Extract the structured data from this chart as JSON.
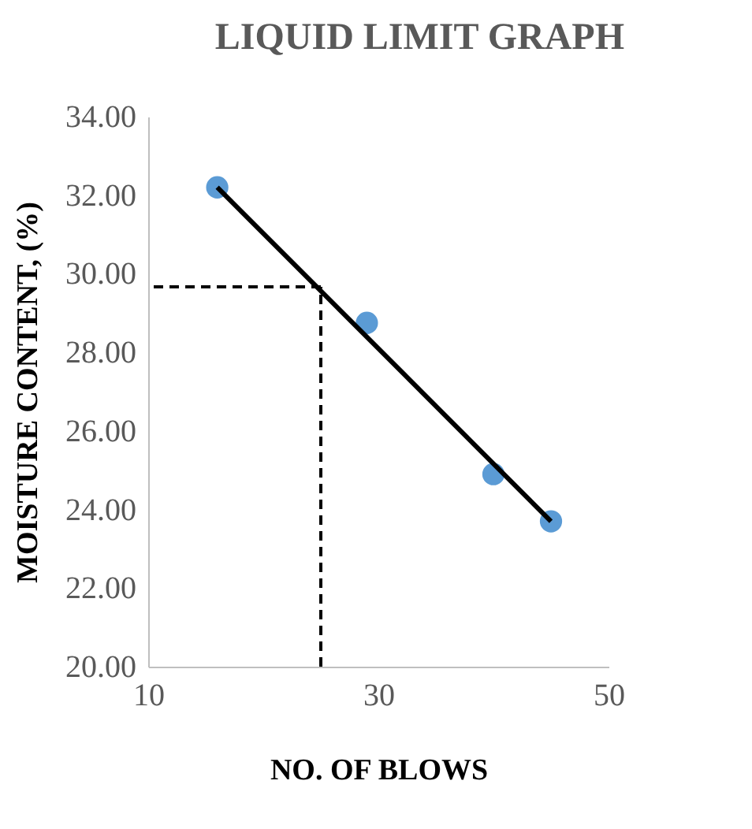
{
  "chart_data": {
    "type": "scatter",
    "title": "LIQUID LIMIT GRAPH",
    "xlabel": "NO. OF BLOWS",
    "ylabel": "MOISTURE CONTENT, (%)",
    "xlim": [
      10,
      50
    ],
    "xticks": [
      10,
      30,
      50
    ],
    "ylim": [
      20,
      34
    ],
    "yticks": [
      {
        "value": 20,
        "label": "20.00"
      },
      {
        "value": 22,
        "label": "22.00"
      },
      {
        "value": 24,
        "label": "24.00"
      },
      {
        "value": 26,
        "label": "26.00"
      },
      {
        "value": 28,
        "label": "28.00"
      },
      {
        "value": 30,
        "label": "30.00"
      },
      {
        "value": 32,
        "label": "32.00"
      },
      {
        "value": 34,
        "label": "34.00"
      }
    ],
    "grid": false,
    "marker": "circle",
    "series": [
      {
        "color": "#5b9bd5",
        "x": [
          16,
          29,
          40,
          45
        ],
        "values": [
          32.2,
          28.75,
          24.9,
          23.7
        ]
      },
      {
        "type": "line",
        "color": "#000000",
        "line_style": "solid",
        "marker": "none",
        "x": [
          16,
          45
        ],
        "values": [
          32.2,
          23.7
        ]
      },
      {
        "type": "line",
        "color": "#000000",
        "line_style": "dashed",
        "marker": "none",
        "x": [
          25,
          25
        ],
        "values": [
          20,
          29.67
        ]
      },
      {
        "type": "line",
        "color": "#000000",
        "line_style": "dashed",
        "marker": "none",
        "x": [
          25,
          10
        ],
        "values": [
          29.67,
          29.67
        ]
      }
    ]
  }
}
